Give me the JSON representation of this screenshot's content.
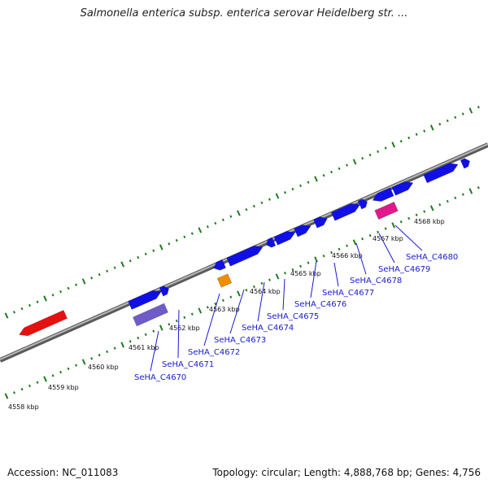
{
  "title": "Salmonella enterica subsp. enterica serovar Heidelberg str. ...",
  "footer": {
    "accession": "Accession: NC_011083",
    "summary": "Topology: circular; Length: 4,888,768 bp; Genes: 4,756"
  },
  "colors": {
    "backbone": "#8a8a8a",
    "tick": "#1f7a1f",
    "gene_forward": "#1010e6",
    "gene_reverse": "#e61010",
    "gene_highlight_purple": "#6f5cc8",
    "gene_orange": "#f08c00",
    "gene_pink": "#e0188c",
    "label": "#1a1ad0"
  },
  "kbp_labels": [
    "4558 kbp",
    "4559 kbp",
    "4560 kbp",
    "4561 kbp",
    "4562 kbp",
    "4563 kbp",
    "4564 kbp",
    "4565 kbp",
    "4566 kbp",
    "4567 kbp",
    "4568 kbp"
  ],
  "gene_labels": [
    "SeHA_C4670",
    "SeHA_C4671",
    "SeHA_C4672",
    "SeHA_C4673",
    "SeHA_C4674",
    "SeHA_C4675",
    "SeHA_C4676",
    "SeHA_C4677",
    "SeHA_C4678",
    "SeHA_C4679",
    "SeHA_C4680"
  ]
}
